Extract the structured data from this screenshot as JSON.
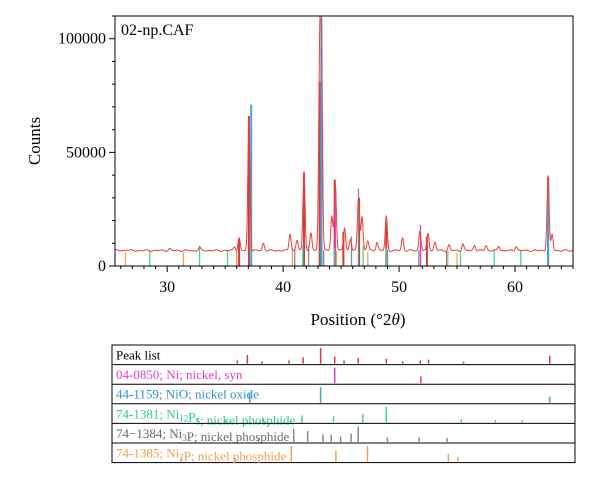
{
  "chart_data": [
    {
      "type": "line",
      "sample_label": "02-np.CAF",
      "xlabel": "Position (°2θ)",
      "xlabel_parts": {
        "main": "Position (°2",
        "theta": "θ",
        "close": ")"
      },
      "ylabel": "Counts",
      "xlim": [
        25.5,
        65
      ],
      "ylim": [
        0,
        110000
      ],
      "xticks": [
        30,
        40,
        50,
        60
      ],
      "yticks": [
        0,
        50000,
        100000
      ],
      "ytick_labels": [
        "0",
        "50000",
        "100000"
      ],
      "grid": false,
      "trace_color": "#e8413b",
      "baseline": 6800,
      "peaks": [
        {
          "x": 26.5,
          "y": 500
        },
        {
          "x": 30.2,
          "y": 800
        },
        {
          "x": 32.8,
          "y": 1300
        },
        {
          "x": 35.8,
          "y": 1800
        },
        {
          "x": 36.2,
          "y": 5500
        },
        {
          "x": 37.05,
          "y": 59000
        },
        {
          "x": 38.3,
          "y": 3200
        },
        {
          "x": 40.6,
          "y": 7500
        },
        {
          "x": 41.2,
          "y": 4500
        },
        {
          "x": 41.8,
          "y": 35000
        },
        {
          "x": 42.4,
          "y": 7500
        },
        {
          "x": 43.15,
          "y": 74000
        },
        {
          "x": 43.3,
          "y": 89000
        },
        {
          "x": 44.2,
          "y": 15000
        },
        {
          "x": 44.5,
          "y": 30000
        },
        {
          "x": 45.3,
          "y": 10000
        },
        {
          "x": 45.8,
          "y": 5000
        },
        {
          "x": 46.5,
          "y": 23000
        },
        {
          "x": 46.8,
          "y": 15000
        },
        {
          "x": 47.3,
          "y": 4200
        },
        {
          "x": 48.1,
          "y": 3800
        },
        {
          "x": 48.9,
          "y": 15000
        },
        {
          "x": 50.3,
          "y": 5500
        },
        {
          "x": 51.8,
          "y": 8500
        },
        {
          "x": 52.5,
          "y": 7500
        },
        {
          "x": 53.1,
          "y": 3700
        },
        {
          "x": 54.3,
          "y": 2500
        },
        {
          "x": 55.5,
          "y": 3000
        },
        {
          "x": 56.5,
          "y": 2500
        },
        {
          "x": 57.5,
          "y": 2200
        },
        {
          "x": 58.6,
          "y": 2000
        },
        {
          "x": 60.1,
          "y": 2000
        },
        {
          "x": 62.85,
          "y": 33000
        },
        {
          "x": 63.2,
          "y": 7000
        }
      ],
      "reference_series": [
        {
          "name": "Peak list",
          "color": "#d53a3a",
          "sticks": [
            {
              "x": 37.05,
              "y": 66000
            },
            {
              "x": 43.15,
              "y": 81000
            },
            {
              "x": 43.3,
              "y": 96000
            },
            {
              "x": 41.8,
              "y": 41000
            },
            {
              "x": 44.45,
              "y": 38000
            },
            {
              "x": 46.55,
              "y": 30000
            },
            {
              "x": 48.9,
              "y": 19000
            },
            {
              "x": 62.85,
              "y": 39000
            },
            {
              "x": 52.4,
              "y": 13000
            },
            {
              "x": 36.2,
              "y": 12000
            },
            {
              "x": 45.2,
              "y": 15000
            }
          ]
        },
        {
          "name": "Ni",
          "color": "#e040c8",
          "sticks": [
            {
              "x": 44.5,
              "y": 37000
            },
            {
              "x": 51.85,
              "y": 18000
            }
          ]
        },
        {
          "name": "NiO",
          "color": "#3fa7e0",
          "sticks": [
            {
              "x": 37.25,
              "y": 71000
            },
            {
              "x": 43.3,
              "y": 109000
            },
            {
              "x": 62.85,
              "y": 38000
            }
          ]
        },
        {
          "name": "Ni12P5",
          "color": "#3ed49a",
          "sticks": [
            {
              "x": 28.5,
              "y": 7000
            },
            {
              "x": 32.8,
              "y": 9000
            },
            {
              "x": 35.2,
              "y": 7000
            },
            {
              "x": 41.7,
              "y": 9000
            },
            {
              "x": 44.4,
              "y": 8000
            },
            {
              "x": 46.9,
              "y": 9000
            },
            {
              "x": 48.9,
              "y": 8000
            },
            {
              "x": 55.3,
              "y": 7000
            },
            {
              "x": 58.2,
              "y": 7000
            },
            {
              "x": 60.5,
              "y": 7000
            }
          ]
        },
        {
          "name": "Ni3P",
          "color": "#8a8a8a",
          "sticks": [
            {
              "x": 41.0,
              "y": 7500
            },
            {
              "x": 42.2,
              "y": 9000
            },
            {
              "x": 43.5,
              "y": 7000
            },
            {
              "x": 45.9,
              "y": 13000
            },
            {
              "x": 46.5,
              "y": 34000
            },
            {
              "x": 49.0,
              "y": 7000
            },
            {
              "x": 51.7,
              "y": 7000
            },
            {
              "x": 54.1,
              "y": 7000
            }
          ]
        },
        {
          "name": "Ni2P",
          "color": "#f0a050",
          "sticks": [
            {
              "x": 26.4,
              "y": 6000
            },
            {
              "x": 31.4,
              "y": 6000
            },
            {
              "x": 36.0,
              "y": 7000
            },
            {
              "x": 40.8,
              "y": 8000
            },
            {
              "x": 44.6,
              "y": 6500
            },
            {
              "x": 47.3,
              "y": 6000
            },
            {
              "x": 54.2,
              "y": 6500
            },
            {
              "x": 55.0,
              "y": 6000
            }
          ]
        }
      ]
    },
    {
      "type": "table",
      "description_order": [
        "Peak list",
        "Ni",
        "NiO",
        "Ni12P5",
        "Ni3P",
        "Ni2P"
      ],
      "xlim": [
        25.5,
        65
      ],
      "rows": [
        {
          "series": "Peak list",
          "label": "Peak list",
          "label_color": "#000000",
          "parts": [
            {
              "t": "Peak list"
            }
          ],
          "sticks": [
            {
              "x": 37.05,
              "h": 0.55
            },
            {
              "x": 43.3,
              "h": 1.0
            },
            {
              "x": 41.8,
              "h": 0.4
            },
            {
              "x": 44.5,
              "h": 0.45
            },
            {
              "x": 46.5,
              "h": 0.35
            },
            {
              "x": 48.9,
              "h": 0.3
            },
            {
              "x": 52.5,
              "h": 0.25
            },
            {
              "x": 62.85,
              "h": 0.5
            },
            {
              "x": 36.2,
              "h": 0.2
            },
            {
              "x": 38.3,
              "h": 0.15
            },
            {
              "x": 40.6,
              "h": 0.2
            },
            {
              "x": 45.3,
              "h": 0.2
            },
            {
              "x": 50.3,
              "h": 0.15
            },
            {
              "x": 51.8,
              "h": 0.2
            },
            {
              "x": 55.5,
              "h": 0.12
            }
          ]
        },
        {
          "series": "Ni",
          "label": "04-0850; Ni; nickel, syn",
          "label_color": "#e040c8",
          "parts": [
            {
              "t": "04-0850; Ni; nickel, syn"
            }
          ],
          "sticks": [
            {
              "x": 44.5,
              "h": 1.0
            },
            {
              "x": 51.85,
              "h": 0.45
            }
          ]
        },
        {
          "series": "NiO",
          "label": "44-1159; NiO; nickel oxide",
          "label_color": "#2f8fd0",
          "parts": [
            {
              "t": "44-1159; NiO; nickel oxide"
            }
          ],
          "sticks": [
            {
              "x": 37.25,
              "h": 0.65
            },
            {
              "x": 43.3,
              "h": 1.0
            },
            {
              "x": 62.85,
              "h": 0.4
            }
          ]
        },
        {
          "series": "Ni12P5",
          "label": "74-1381; Ni12P5; nickel phosphide",
          "label_color": "#2ec98a",
          "parts": [
            {
              "t": "74-1381; Ni"
            },
            {
              "t": "12",
              "sub": true
            },
            {
              "t": "P"
            },
            {
              "t": "5",
              "sub": true
            },
            {
              "t": "; nickel phosphide"
            }
          ],
          "sticks": [
            {
              "x": 41.7,
              "h": 0.45
            },
            {
              "x": 44.4,
              "h": 0.4
            },
            {
              "x": 46.9,
              "h": 0.55
            },
            {
              "x": 48.9,
              "h": 1.0
            },
            {
              "x": 32.8,
              "h": 0.25
            },
            {
              "x": 38.4,
              "h": 0.3
            },
            {
              "x": 35.2,
              "h": 0.2
            },
            {
              "x": 55.3,
              "h": 0.2
            },
            {
              "x": 58.2,
              "h": 0.15
            },
            {
              "x": 60.5,
              "h": 0.15
            }
          ]
        },
        {
          "series": "Ni3P",
          "label": "74−1384; Ni3P; nickel phosphide",
          "label_color": "#6a6a6a",
          "parts": [
            {
              "t": "74−1384; Ni"
            },
            {
              "t": "3",
              "sub": true
            },
            {
              "t": "P; nickel phosphide"
            }
          ],
          "sticks": [
            {
              "x": 41.0,
              "h": 0.85
            },
            {
              "x": 42.2,
              "h": 0.7
            },
            {
              "x": 43.5,
              "h": 0.5
            },
            {
              "x": 44.2,
              "h": 0.45
            },
            {
              "x": 45.0,
              "h": 0.35
            },
            {
              "x": 45.9,
              "h": 0.55
            },
            {
              "x": 46.5,
              "h": 1.0
            },
            {
              "x": 49.0,
              "h": 0.3
            },
            {
              "x": 51.7,
              "h": 0.3
            },
            {
              "x": 54.1,
              "h": 0.25
            },
            {
              "x": 38.0,
              "h": 0.2
            }
          ]
        },
        {
          "series": "Ni2P",
          "label": "74-1385; Ni2P; nickel phosphide",
          "label_color": "#f0a050",
          "parts": [
            {
              "t": "74-1385; Ni"
            },
            {
              "t": "2",
              "sub": true
            },
            {
              "t": "P; nickel phosphide"
            }
          ],
          "sticks": [
            {
              "x": 40.8,
              "h": 1.0
            },
            {
              "x": 44.6,
              "h": 0.7
            },
            {
              "x": 47.3,
              "h": 1.0
            },
            {
              "x": 54.2,
              "h": 0.5
            },
            {
              "x": 55.0,
              "h": 0.3
            },
            {
              "x": 31.4,
              "h": 0.3
            },
            {
              "x": 36.0,
              "h": 0.25
            }
          ]
        }
      ]
    }
  ]
}
